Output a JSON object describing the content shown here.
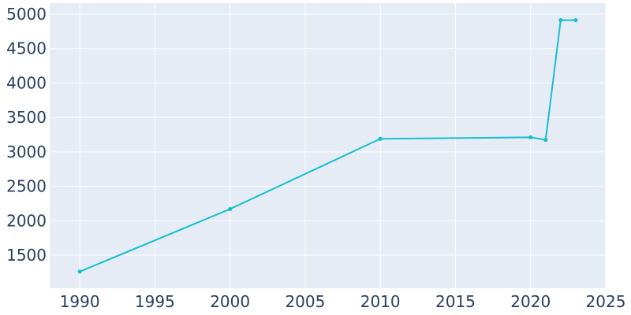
{
  "chart_data": {
    "type": "line",
    "title": "",
    "xlabel": "",
    "ylabel": "",
    "xlim": [
      1988,
      2025
    ],
    "ylim": [
      1020,
      5160
    ],
    "grid": true,
    "x_ticks": [
      1990,
      1995,
      2000,
      2005,
      2010,
      2015,
      2020,
      2025
    ],
    "y_ticks": [
      1500,
      2000,
      2500,
      3000,
      3500,
      4000,
      4500,
      5000
    ],
    "series": [
      {
        "color": "#17becf",
        "points": [
          {
            "x": 1990,
            "y": 1261
          },
          {
            "x": 2000,
            "y": 2170
          },
          {
            "x": 2010,
            "y": 3190
          },
          {
            "x": 2020,
            "y": 3212
          },
          {
            "x": 2021,
            "y": 3175
          },
          {
            "x": 2022,
            "y": 4913
          },
          {
            "x": 2023,
            "y": 4913
          }
        ]
      }
    ]
  },
  "style": {
    "plot_background": "#e5ecf6",
    "grid_color": "#ffffff",
    "tick_text_color": "#2a3f5f",
    "line_color": "#17becf"
  }
}
